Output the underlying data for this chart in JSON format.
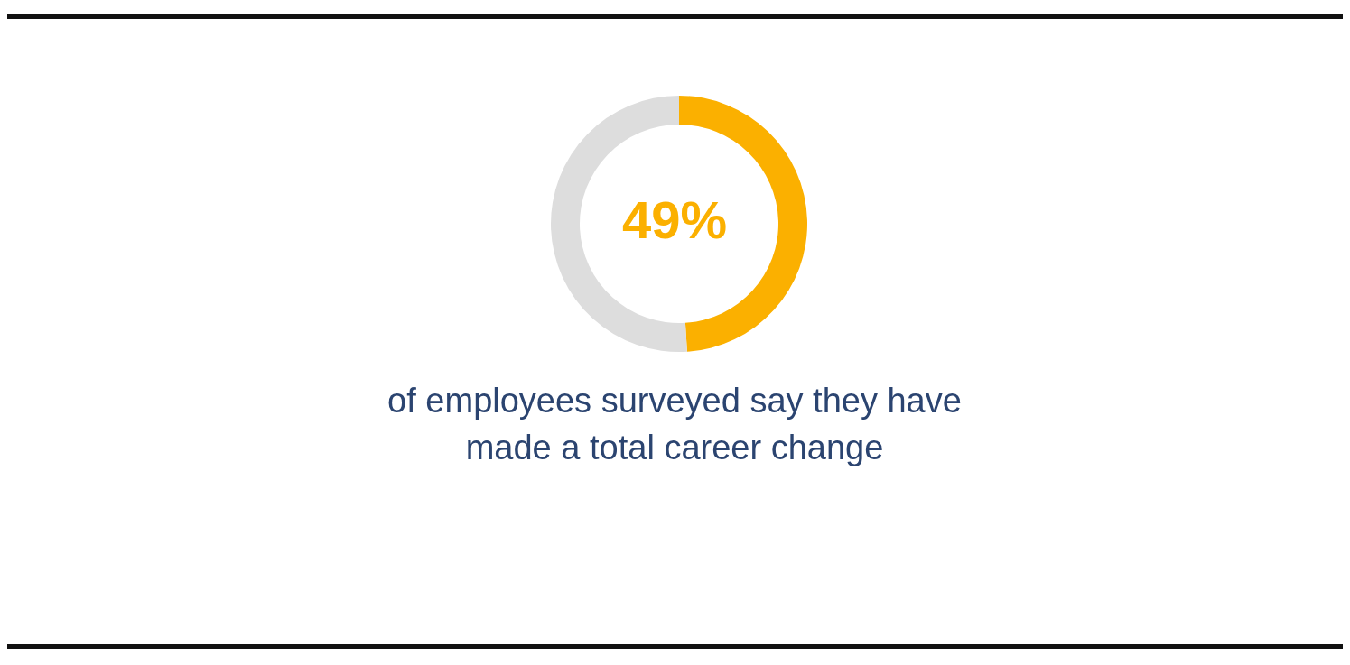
{
  "chart_data": {
    "type": "donut",
    "title": "49%",
    "categories": [
      null,
      null
    ],
    "values": [
      49,
      51
    ],
    "colors": [
      "#fbb000",
      "#dddddd"
    ],
    "annotations": [
      "of employees surveyed say they have made a total career change"
    ]
  }
}
